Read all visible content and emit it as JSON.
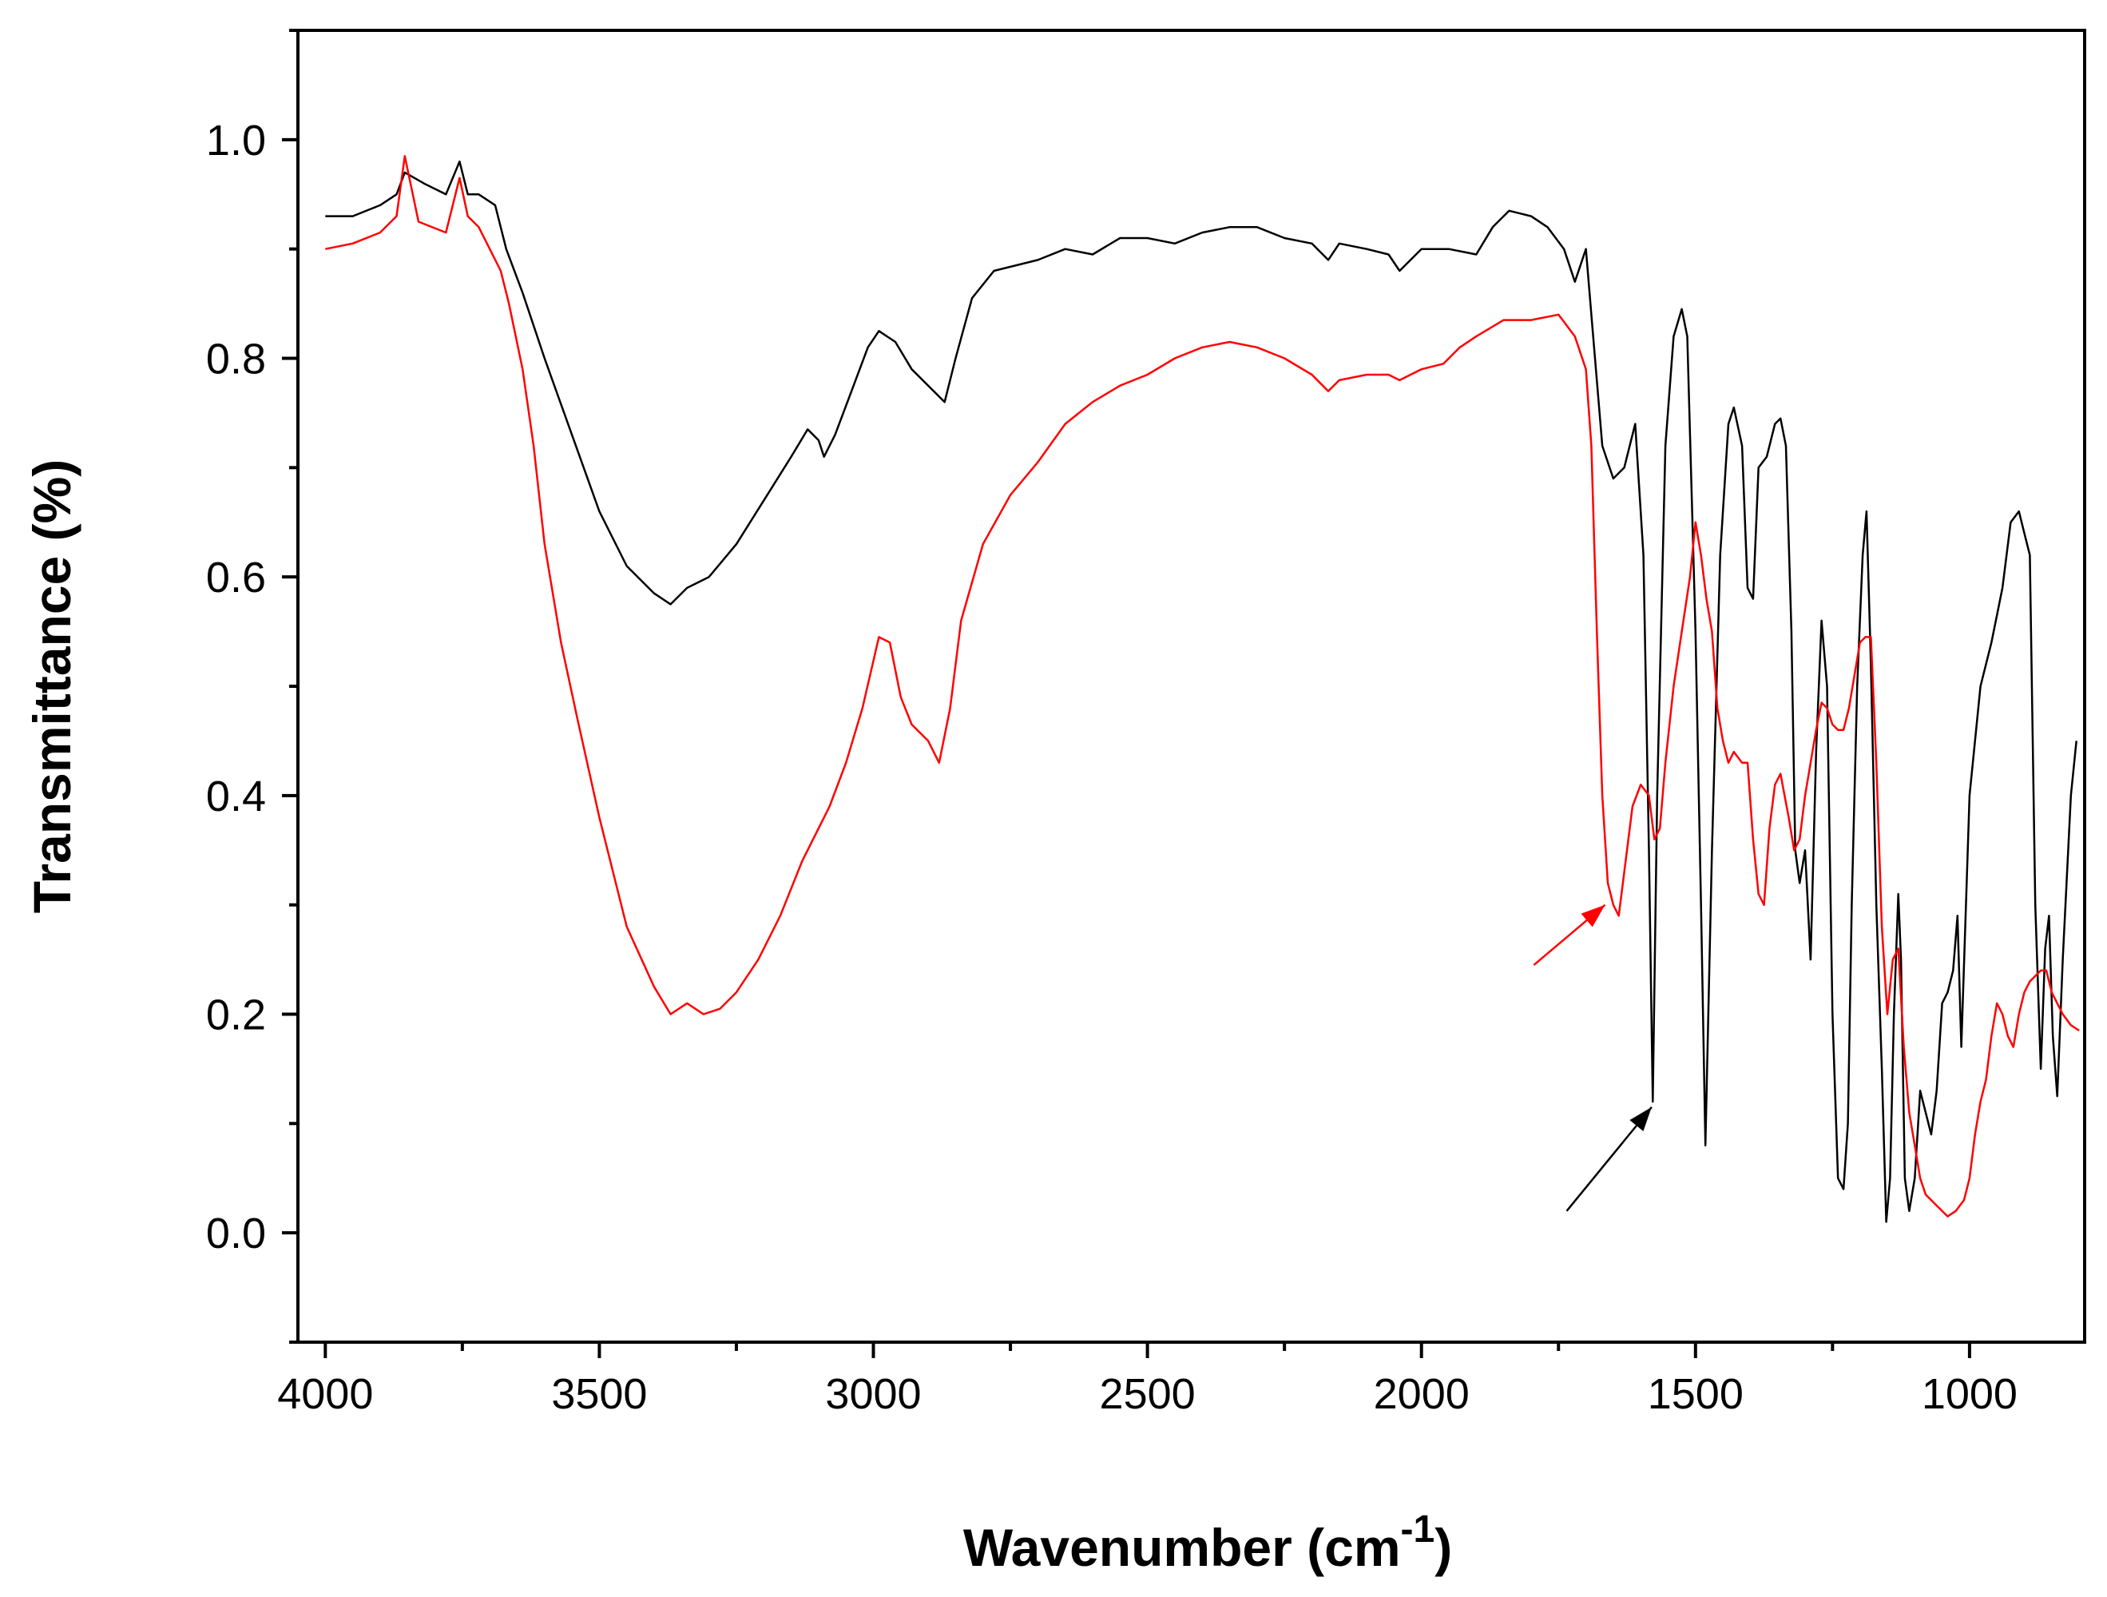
{
  "chart_data": {
    "type": "line",
    "title": "",
    "xlabel": "Wavenumber (cm",
    "xlabel_superscript": "-1",
    "xlabel_suffix": ")",
    "ylabel": "Transmittance (%)",
    "xlim": [
      4050,
      790
    ],
    "ylim": [
      -0.1,
      1.1
    ],
    "x_reversed": true,
    "xticks": [
      4000,
      3500,
      3000,
      2500,
      2000,
      1500,
      1000
    ],
    "xtick_labels": [
      "4000",
      "3500",
      "3000",
      "2500",
      "2000",
      "1500",
      "1000"
    ],
    "yticks": [
      0.0,
      0.2,
      0.4,
      0.6,
      0.8,
      1.0
    ],
    "ytick_labels": [
      "0.0",
      "0.2",
      "0.4",
      "0.6",
      "0.8",
      "1.0"
    ],
    "grid": false,
    "legend": "none",
    "series": [
      {
        "color": "#000000",
        "points": [
          [
            4000,
            0.93
          ],
          [
            3950,
            0.93
          ],
          [
            3900,
            0.94
          ],
          [
            3870,
            0.95
          ],
          [
            3855,
            0.97
          ],
          [
            3820,
            0.96
          ],
          [
            3780,
            0.95
          ],
          [
            3755,
            0.98
          ],
          [
            3740,
            0.95
          ],
          [
            3720,
            0.95
          ],
          [
            3690,
            0.94
          ],
          [
            3670,
            0.9
          ],
          [
            3640,
            0.86
          ],
          [
            3600,
            0.8
          ],
          [
            3550,
            0.73
          ],
          [
            3500,
            0.66
          ],
          [
            3450,
            0.61
          ],
          [
            3400,
            0.585
          ],
          [
            3370,
            0.575
          ],
          [
            3340,
            0.59
          ],
          [
            3300,
            0.6
          ],
          [
            3250,
            0.63
          ],
          [
            3200,
            0.67
          ],
          [
            3150,
            0.71
          ],
          [
            3120,
            0.735
          ],
          [
            3100,
            0.725
          ],
          [
            3090,
            0.71
          ],
          [
            3070,
            0.73
          ],
          [
            3040,
            0.77
          ],
          [
            3010,
            0.81
          ],
          [
            2990,
            0.825
          ],
          [
            2960,
            0.815
          ],
          [
            2930,
            0.79
          ],
          [
            2900,
            0.775
          ],
          [
            2870,
            0.76
          ],
          [
            2850,
            0.8
          ],
          [
            2820,
            0.855
          ],
          [
            2780,
            0.88
          ],
          [
            2700,
            0.89
          ],
          [
            2650,
            0.9
          ],
          [
            2600,
            0.895
          ],
          [
            2550,
            0.91
          ],
          [
            2500,
            0.91
          ],
          [
            2450,
            0.905
          ],
          [
            2400,
            0.915
          ],
          [
            2350,
            0.92
          ],
          [
            2300,
            0.92
          ],
          [
            2250,
            0.91
          ],
          [
            2200,
            0.905
          ],
          [
            2170,
            0.89
          ],
          [
            2150,
            0.905
          ],
          [
            2100,
            0.9
          ],
          [
            2060,
            0.895
          ],
          [
            2040,
            0.88
          ],
          [
            2000,
            0.9
          ],
          [
            1950,
            0.9
          ],
          [
            1900,
            0.895
          ],
          [
            1870,
            0.92
          ],
          [
            1840,
            0.935
          ],
          [
            1800,
            0.93
          ],
          [
            1770,
            0.92
          ],
          [
            1740,
            0.9
          ],
          [
            1720,
            0.87
          ],
          [
            1700,
            0.9
          ],
          [
            1690,
            0.84
          ],
          [
            1670,
            0.72
          ],
          [
            1650,
            0.69
          ],
          [
            1630,
            0.7
          ],
          [
            1610,
            0.74
          ],
          [
            1595,
            0.62
          ],
          [
            1585,
            0.35
          ],
          [
            1578,
            0.12
          ],
          [
            1570,
            0.4
          ],
          [
            1555,
            0.72
          ],
          [
            1540,
            0.82
          ],
          [
            1525,
            0.845
          ],
          [
            1515,
            0.82
          ],
          [
            1500,
            0.55
          ],
          [
            1490,
            0.3
          ],
          [
            1482,
            0.08
          ],
          [
            1470,
            0.35
          ],
          [
            1455,
            0.62
          ],
          [
            1440,
            0.74
          ],
          [
            1430,
            0.755
          ],
          [
            1415,
            0.72
          ],
          [
            1405,
            0.59
          ],
          [
            1395,
            0.58
          ],
          [
            1385,
            0.7
          ],
          [
            1370,
            0.71
          ],
          [
            1355,
            0.74
          ],
          [
            1345,
            0.745
          ],
          [
            1335,
            0.72
          ],
          [
            1325,
            0.55
          ],
          [
            1318,
            0.35
          ],
          [
            1310,
            0.32
          ],
          [
            1300,
            0.35
          ],
          [
            1290,
            0.25
          ],
          [
            1280,
            0.44
          ],
          [
            1270,
            0.56
          ],
          [
            1260,
            0.5
          ],
          [
            1250,
            0.2
          ],
          [
            1240,
            0.05
          ],
          [
            1230,
            0.04
          ],
          [
            1222,
            0.1
          ],
          [
            1215,
            0.3
          ],
          [
            1205,
            0.5
          ],
          [
            1195,
            0.62
          ],
          [
            1188,
            0.66
          ],
          [
            1180,
            0.52
          ],
          [
            1170,
            0.3
          ],
          [
            1160,
            0.15
          ],
          [
            1152,
            0.01
          ],
          [
            1145,
            0.05
          ],
          [
            1138,
            0.2
          ],
          [
            1130,
            0.31
          ],
          [
            1125,
            0.25
          ],
          [
            1118,
            0.05
          ],
          [
            1110,
            0.02
          ],
          [
            1100,
            0.05
          ],
          [
            1090,
            0.13
          ],
          [
            1080,
            0.11
          ],
          [
            1070,
            0.09
          ],
          [
            1060,
            0.13
          ],
          [
            1050,
            0.21
          ],
          [
            1040,
            0.22
          ],
          [
            1030,
            0.24
          ],
          [
            1022,
            0.29
          ],
          [
            1015,
            0.17
          ],
          [
            1000,
            0.4
          ],
          [
            980,
            0.5
          ],
          [
            960,
            0.54
          ],
          [
            940,
            0.59
          ],
          [
            925,
            0.65
          ],
          [
            910,
            0.66
          ],
          [
            900,
            0.64
          ],
          [
            890,
            0.62
          ],
          [
            880,
            0.3
          ],
          [
            870,
            0.15
          ],
          [
            862,
            0.26
          ],
          [
            855,
            0.29
          ],
          [
            848,
            0.18
          ],
          [
            840,
            0.125
          ],
          [
            830,
            0.25
          ],
          [
            815,
            0.4
          ],
          [
            805,
            0.45
          ]
        ]
      },
      {
        "color": "#ff0000",
        "points": [
          [
            4000,
            0.9
          ],
          [
            3950,
            0.905
          ],
          [
            3900,
            0.915
          ],
          [
            3870,
            0.93
          ],
          [
            3855,
            0.985
          ],
          [
            3830,
            0.925
          ],
          [
            3780,
            0.915
          ],
          [
            3755,
            0.965
          ],
          [
            3740,
            0.93
          ],
          [
            3720,
            0.92
          ],
          [
            3700,
            0.9
          ],
          [
            3680,
            0.88
          ],
          [
            3665,
            0.85
          ],
          [
            3640,
            0.79
          ],
          [
            3620,
            0.72
          ],
          [
            3600,
            0.63
          ],
          [
            3570,
            0.54
          ],
          [
            3540,
            0.47
          ],
          [
            3500,
            0.38
          ],
          [
            3450,
            0.28
          ],
          [
            3400,
            0.225
          ],
          [
            3370,
            0.2
          ],
          [
            3340,
            0.21
          ],
          [
            3310,
            0.2
          ],
          [
            3280,
            0.205
          ],
          [
            3250,
            0.22
          ],
          [
            3210,
            0.25
          ],
          [
            3170,
            0.29
          ],
          [
            3130,
            0.34
          ],
          [
            3080,
            0.39
          ],
          [
            3050,
            0.43
          ],
          [
            3020,
            0.48
          ],
          [
            2990,
            0.545
          ],
          [
            2970,
            0.54
          ],
          [
            2950,
            0.49
          ],
          [
            2930,
            0.465
          ],
          [
            2900,
            0.45
          ],
          [
            2880,
            0.43
          ],
          [
            2860,
            0.48
          ],
          [
            2840,
            0.56
          ],
          [
            2800,
            0.63
          ],
          [
            2750,
            0.675
          ],
          [
            2700,
            0.705
          ],
          [
            2650,
            0.74
          ],
          [
            2600,
            0.76
          ],
          [
            2550,
            0.775
          ],
          [
            2500,
            0.785
          ],
          [
            2450,
            0.8
          ],
          [
            2400,
            0.81
          ],
          [
            2350,
            0.815
          ],
          [
            2300,
            0.81
          ],
          [
            2250,
            0.8
          ],
          [
            2200,
            0.785
          ],
          [
            2170,
            0.77
          ],
          [
            2150,
            0.78
          ],
          [
            2100,
            0.785
          ],
          [
            2060,
            0.785
          ],
          [
            2040,
            0.78
          ],
          [
            2000,
            0.79
          ],
          [
            1960,
            0.795
          ],
          [
            1930,
            0.81
          ],
          [
            1900,
            0.82
          ],
          [
            1850,
            0.835
          ],
          [
            1800,
            0.835
          ],
          [
            1750,
            0.84
          ],
          [
            1720,
            0.82
          ],
          [
            1700,
            0.79
          ],
          [
            1690,
            0.72
          ],
          [
            1680,
            0.55
          ],
          [
            1670,
            0.4
          ],
          [
            1660,
            0.32
          ],
          [
            1650,
            0.3
          ],
          [
            1640,
            0.29
          ],
          [
            1630,
            0.33
          ],
          [
            1615,
            0.39
          ],
          [
            1600,
            0.41
          ],
          [
            1585,
            0.4
          ],
          [
            1575,
            0.36
          ],
          [
            1565,
            0.37
          ],
          [
            1555,
            0.43
          ],
          [
            1540,
            0.5
          ],
          [
            1525,
            0.55
          ],
          [
            1510,
            0.6
          ],
          [
            1500,
            0.65
          ],
          [
            1490,
            0.62
          ],
          [
            1480,
            0.58
          ],
          [
            1470,
            0.55
          ],
          [
            1460,
            0.48
          ],
          [
            1450,
            0.45
          ],
          [
            1440,
            0.43
          ],
          [
            1430,
            0.44
          ],
          [
            1415,
            0.43
          ],
          [
            1405,
            0.43
          ],
          [
            1395,
            0.36
          ],
          [
            1385,
            0.31
          ],
          [
            1375,
            0.3
          ],
          [
            1365,
            0.37
          ],
          [
            1355,
            0.41
          ],
          [
            1345,
            0.42
          ],
          [
            1330,
            0.38
          ],
          [
            1320,
            0.35
          ],
          [
            1310,
            0.36
          ],
          [
            1300,
            0.4
          ],
          [
            1290,
            0.43
          ],
          [
            1280,
            0.46
          ],
          [
            1270,
            0.485
          ],
          [
            1260,
            0.48
          ],
          [
            1250,
            0.465
          ],
          [
            1240,
            0.46
          ],
          [
            1230,
            0.46
          ],
          [
            1220,
            0.48
          ],
          [
            1210,
            0.51
          ],
          [
            1200,
            0.54
          ],
          [
            1190,
            0.545
          ],
          [
            1180,
            0.545
          ],
          [
            1170,
            0.43
          ],
          [
            1160,
            0.28
          ],
          [
            1150,
            0.2
          ],
          [
            1140,
            0.25
          ],
          [
            1130,
            0.26
          ],
          [
            1120,
            0.17
          ],
          [
            1110,
            0.11
          ],
          [
            1100,
            0.08
          ],
          [
            1090,
            0.05
          ],
          [
            1080,
            0.035
          ],
          [
            1060,
            0.025
          ],
          [
            1040,
            0.015
          ],
          [
            1025,
            0.02
          ],
          [
            1010,
            0.03
          ],
          [
            1000,
            0.05
          ],
          [
            990,
            0.09
          ],
          [
            980,
            0.12
          ],
          [
            970,
            0.14
          ],
          [
            960,
            0.18
          ],
          [
            950,
            0.21
          ],
          [
            940,
            0.2
          ],
          [
            930,
            0.18
          ],
          [
            920,
            0.17
          ],
          [
            910,
            0.2
          ],
          [
            900,
            0.22
          ],
          [
            890,
            0.23
          ],
          [
            880,
            0.235
          ],
          [
            870,
            0.24
          ],
          [
            860,
            0.24
          ],
          [
            850,
            0.22
          ],
          [
            840,
            0.21
          ],
          [
            830,
            0.2
          ],
          [
            815,
            0.19
          ],
          [
            800,
            0.185
          ]
        ]
      }
    ],
    "annotations": [
      {
        "type": "arrow",
        "color": "#ff0000",
        "from": [
          1795,
          0.245
        ],
        "to": [
          1665,
          0.3
        ]
      },
      {
        "type": "arrow",
        "color": "#000000",
        "from": [
          1735,
          0.02
        ],
        "to": [
          1580,
          0.115
        ]
      }
    ]
  }
}
